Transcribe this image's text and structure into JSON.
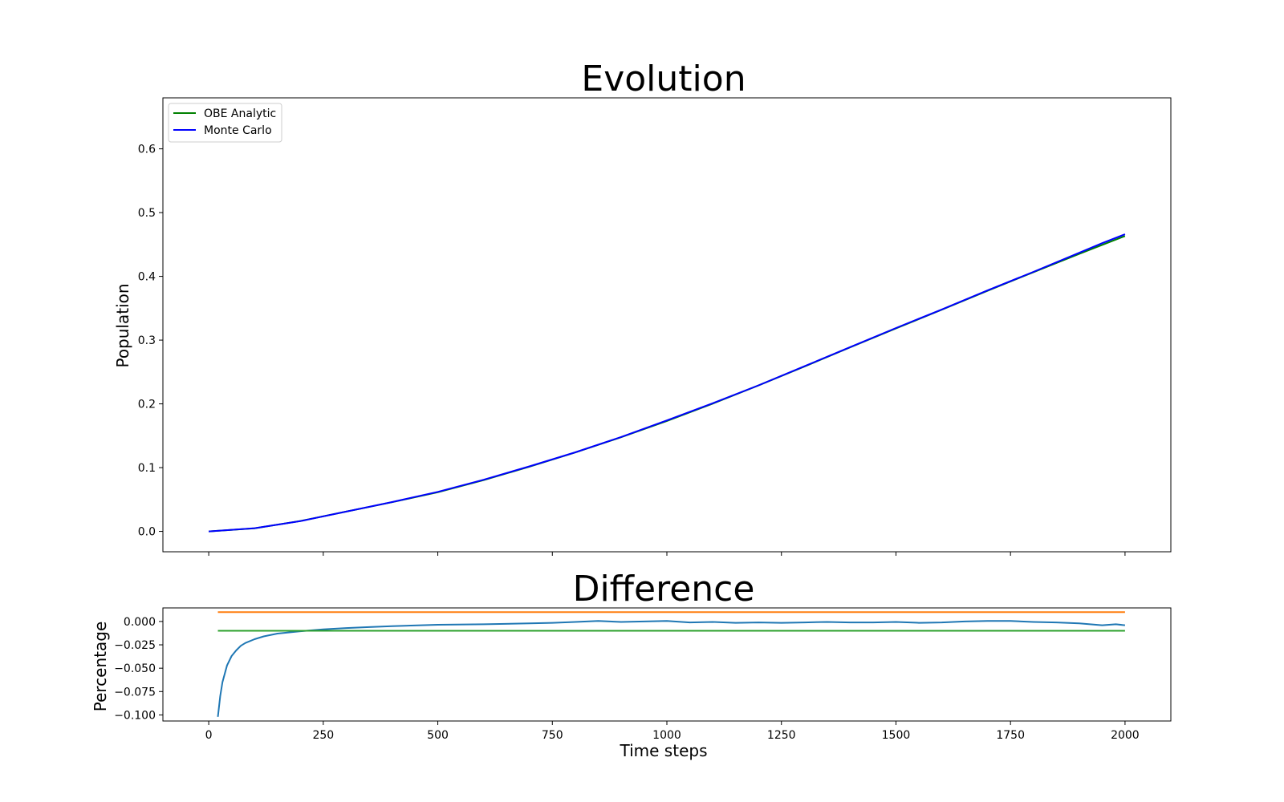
{
  "chart_data": [
    {
      "type": "line",
      "title": "Evolution",
      "xlabel": "",
      "ylabel": "Population",
      "xlim": [
        -100,
        2100
      ],
      "ylim": [
        -0.032,
        0.68
      ],
      "xticks": [
        0,
        250,
        500,
        750,
        1000,
        1250,
        1500,
        1750,
        2000
      ],
      "xtick_labels_visible": false,
      "yticks": [
        0.0,
        0.1,
        0.2,
        0.3,
        0.4,
        0.5,
        0.6
      ],
      "ytick_labels": [
        "0.0",
        "0.1",
        "0.2",
        "0.3",
        "0.4",
        "0.5",
        "0.6"
      ],
      "grid": false,
      "legend": "upper left",
      "series": [
        {
          "name": "OBE Analytic",
          "color": "#008000",
          "x": [
            0,
            100,
            200,
            300,
            400,
            500,
            600,
            700,
            800,
            900,
            1000,
            1100,
            1200,
            1300,
            1400,
            1500,
            1600,
            1700,
            1800,
            1900,
            2000
          ],
          "y": [
            0.0,
            0.0049,
            0.0163,
            0.031,
            0.0458,
            0.0613,
            0.0803,
            0.1015,
            0.1237,
            0.1476,
            0.1732,
            0.2003,
            0.2289,
            0.2585,
            0.2887,
            0.3183,
            0.3477,
            0.3773,
            0.4065,
            0.4352,
            0.4632
          ]
        },
        {
          "name": "Monte Carlo",
          "color": "#0000ff",
          "x": [
            0,
            100,
            200,
            300,
            400,
            500,
            600,
            700,
            800,
            900,
            1000,
            1100,
            1200,
            1300,
            1400,
            1500,
            1600,
            1700,
            1800,
            1900,
            1950,
            2000
          ],
          "y": [
            0.0,
            0.005,
            0.016,
            0.031,
            0.046,
            0.062,
            0.081,
            0.102,
            0.124,
            0.148,
            0.174,
            0.201,
            0.229,
            0.259,
            0.289,
            0.319,
            0.348,
            0.378,
            0.407,
            0.437,
            0.452,
            0.466
          ]
        }
      ]
    },
    {
      "type": "line",
      "title": "Difference",
      "xlabel": "Time steps",
      "ylabel": "Percentage",
      "xlim": [
        -100,
        2100
      ],
      "ylim": [
        -0.1065,
        0.0145
      ],
      "xticks": [
        0,
        250,
        500,
        750,
        1000,
        1250,
        1500,
        1750,
        2000
      ],
      "xtick_labels": [
        "0",
        "250",
        "500",
        "750",
        "1000",
        "1250",
        "1500",
        "1750",
        "2000"
      ],
      "yticks": [
        0.0,
        -0.025,
        -0.05,
        -0.075,
        -0.1
      ],
      "ytick_labels": [
        "0.000",
        "−0.025",
        "−0.050",
        "−0.075",
        "−0.100"
      ],
      "grid": false,
      "series": [
        {
          "color": "#1f77b4",
          "x": [
            20,
            25,
            30,
            40,
            50,
            60,
            70,
            80,
            100,
            120,
            150,
            200,
            250,
            300,
            350,
            400,
            500,
            600,
            700,
            750,
            800,
            850,
            900,
            950,
            1000,
            1050,
            1100,
            1150,
            1200,
            1250,
            1300,
            1350,
            1400,
            1450,
            1500,
            1550,
            1600,
            1650,
            1700,
            1750,
            1800,
            1850,
            1900,
            1950,
            1980,
            2000
          ],
          "y": [
            -0.102,
            -0.08,
            -0.065,
            -0.047,
            -0.037,
            -0.031,
            -0.026,
            -0.023,
            -0.019,
            -0.016,
            -0.013,
            -0.0105,
            -0.0085,
            -0.007,
            -0.006,
            -0.005,
            -0.0035,
            -0.003,
            -0.002,
            -0.0015,
            -0.0005,
            0.0005,
            -0.0005,
            0.0,
            0.0005,
            -0.001,
            -0.0005,
            -0.0015,
            -0.001,
            -0.0015,
            -0.001,
            -0.0005,
            -0.001,
            -0.001,
            -0.0005,
            -0.0015,
            -0.001,
            0.0,
            0.0005,
            0.0005,
            -0.0005,
            -0.001,
            -0.002,
            -0.004,
            -0.003,
            -0.004
          ]
        },
        {
          "color": "#ff7f0e",
          "x": [
            20,
            2000
          ],
          "y": [
            0.01,
            0.01
          ]
        },
        {
          "color": "#2ca02c",
          "x": [
            20,
            2000
          ],
          "y": [
            -0.01,
            -0.01
          ]
        }
      ]
    }
  ]
}
